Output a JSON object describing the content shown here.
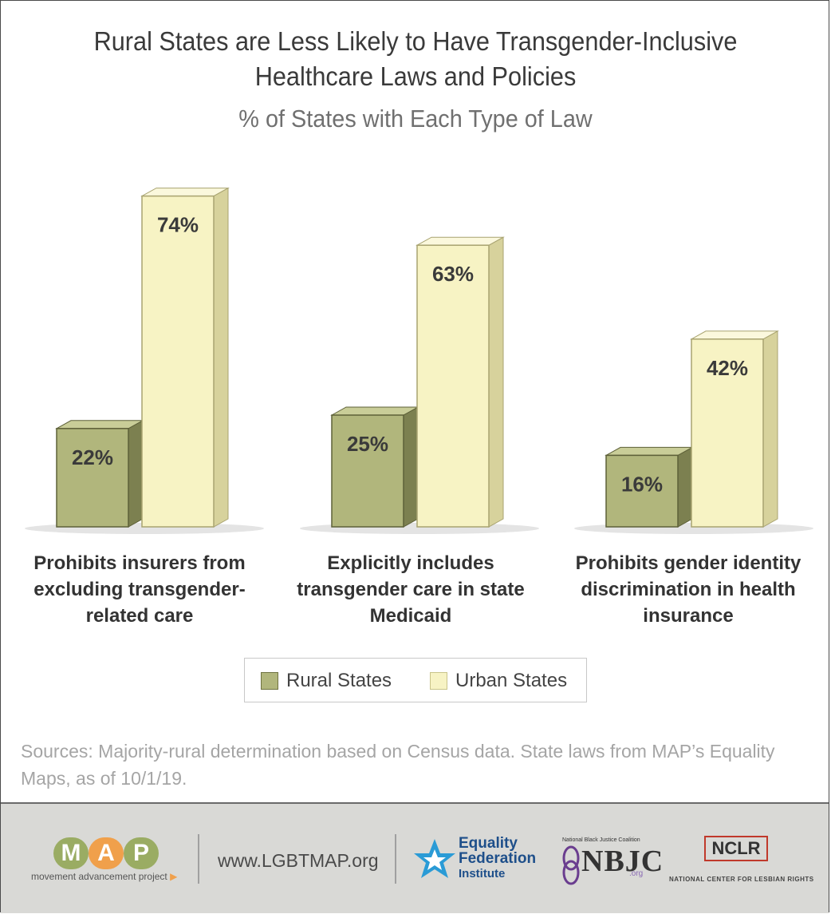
{
  "chart_data": {
    "type": "bar",
    "title_line1": "Rural States are Less Likely to Have Transgender-Inclusive",
    "title_line2": "Healthcare Laws and Policies",
    "subtitle": "% of States with Each Type of Law",
    "categories": [
      "Prohibits insurers from excluding transgender-related care",
      "Explicitly includes transgender care in state Medicaid",
      "Prohibits gender identity discrimination in health insurance"
    ],
    "category_lines": [
      [
        "Prohibits insurers from",
        "excluding transgender-",
        "related care"
      ],
      [
        "Explicitly includes",
        "transgender care in state",
        "Medicaid"
      ],
      [
        "Prohibits gender identity",
        "discrimination in health",
        "insurance"
      ]
    ],
    "series": [
      {
        "name": "Rural States",
        "values": [
          22,
          25,
          16
        ],
        "labels": [
          "22%",
          "25%",
          "16%"
        ],
        "color": "#b1b67c"
      },
      {
        "name": "Urban States",
        "values": [
          74,
          63,
          42
        ],
        "labels": [
          "74%",
          "63%",
          "42%"
        ],
        "color": "#f7f3c4"
      }
    ],
    "unit": "%",
    "ylim": [
      0,
      100
    ],
    "grid": false,
    "legend_position": "bottom"
  },
  "sources": "Sources: Majority-rural determination based on Census data. State laws from MAP’s Equality Maps, as of 10/1/19.",
  "footer": {
    "map_logo": "MAP",
    "map_letters": [
      "M",
      "A",
      "P"
    ],
    "map_tagline": "movement advancement project",
    "url": "www.LGBTMAP.org",
    "efi_line1": "Equality",
    "efi_line2": "Federation",
    "efi_line3": "Institute",
    "nbjc_name": "National Black Justice Coalition",
    "nbjc": "NBJC",
    "nbjc_org": ".org",
    "nclr": "NCLR",
    "nclr_sub": "NATIONAL CENTER FOR LESBIAN RIGHTS"
  },
  "colors": {
    "rural": "#b1b67c",
    "urban": "#f7f3c4",
    "map_orange": "#f0a04b",
    "map_green": "#9aac63",
    "efi_blue": "#1e4f8a",
    "nclr_red": "#c0392b"
  }
}
